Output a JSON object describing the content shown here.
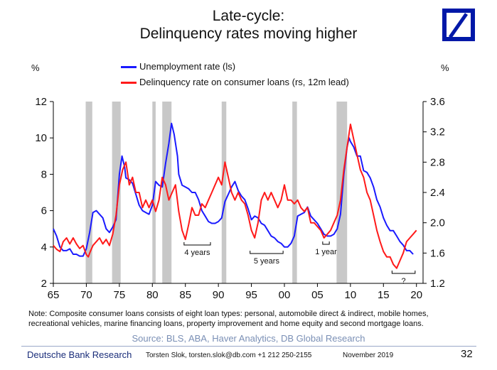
{
  "header": {
    "title_line1": "Late-cycle:",
    "title_line2": "Delinquency rates moving higher",
    "unit_left": "%",
    "unit_right": "%"
  },
  "colors": {
    "unemployment": "#1a1aff",
    "delinquency": "#ff1a1a",
    "recession": "#c8c8c8",
    "logo": "#0018a8",
    "brand_text": "#1a2d7a",
    "source_text": "#7a8fb5"
  },
  "logo": {
    "icon": "deutsche-bank-slash-square-icon"
  },
  "chart_data": {
    "type": "line",
    "xlim": [
      1965,
      2021
    ],
    "ylim_left": [
      2,
      12
    ],
    "ylim_right": [
      1.2,
      3.6
    ],
    "x_ticks": [
      "65",
      "70",
      "75",
      "80",
      "85",
      "90",
      "95",
      "00",
      "05",
      "10",
      "15",
      "20"
    ],
    "y_left_ticks": [
      "2",
      "4",
      "6",
      "8",
      "10",
      "12"
    ],
    "y_right_ticks": [
      "1.2",
      "1.6",
      "2.0",
      "2.4",
      "2.8",
      "3.2",
      "3.6"
    ],
    "legend_position": "top",
    "recessions": [
      [
        1969.9,
        1970.9
      ],
      [
        1973.9,
        1975.2
      ],
      [
        1980.0,
        1980.5
      ],
      [
        1981.5,
        1982.9
      ],
      [
        1990.5,
        1991.2
      ],
      [
        2001.2,
        2001.9
      ],
      [
        2007.9,
        2009.5
      ]
    ],
    "series": [
      {
        "name": "Unemployment rate (ls)",
        "axis": "left",
        "points": [
          [
            1965.0,
            5.0
          ],
          [
            1965.5,
            4.6
          ],
          [
            1966.0,
            4.0
          ],
          [
            1966.5,
            3.8
          ],
          [
            1967.0,
            3.8
          ],
          [
            1967.5,
            3.9
          ],
          [
            1968.0,
            3.6
          ],
          [
            1968.5,
            3.6
          ],
          [
            1969.0,
            3.5
          ],
          [
            1969.5,
            3.5
          ],
          [
            1970.0,
            3.9
          ],
          [
            1970.5,
            4.8
          ],
          [
            1971.0,
            5.9
          ],
          [
            1971.5,
            6.0
          ],
          [
            1972.0,
            5.8
          ],
          [
            1972.5,
            5.6
          ],
          [
            1973.0,
            5.0
          ],
          [
            1973.5,
            4.8
          ],
          [
            1974.0,
            5.1
          ],
          [
            1974.5,
            5.5
          ],
          [
            1975.0,
            8.0
          ],
          [
            1975.4,
            9.0
          ],
          [
            1975.8,
            8.4
          ],
          [
            1976.0,
            7.8
          ],
          [
            1976.5,
            7.7
          ],
          [
            1977.0,
            7.5
          ],
          [
            1977.5,
            6.9
          ],
          [
            1978.0,
            6.3
          ],
          [
            1978.5,
            6.0
          ],
          [
            1979.0,
            5.9
          ],
          [
            1979.5,
            5.8
          ],
          [
            1980.0,
            6.3
          ],
          [
            1980.5,
            7.6
          ],
          [
            1981.0,
            7.4
          ],
          [
            1981.5,
            7.3
          ],
          [
            1982.0,
            8.6
          ],
          [
            1982.5,
            9.7
          ],
          [
            1982.9,
            10.8
          ],
          [
            1983.3,
            10.2
          ],
          [
            1983.8,
            9.0
          ],
          [
            1984.0,
            8.0
          ],
          [
            1984.5,
            7.4
          ],
          [
            1985.0,
            7.3
          ],
          [
            1985.5,
            7.2
          ],
          [
            1986.0,
            7.0
          ],
          [
            1986.5,
            7.0
          ],
          [
            1987.0,
            6.6
          ],
          [
            1987.5,
            6.0
          ],
          [
            1988.0,
            5.7
          ],
          [
            1988.5,
            5.4
          ],
          [
            1989.0,
            5.3
          ],
          [
            1989.5,
            5.3
          ],
          [
            1990.0,
            5.4
          ],
          [
            1990.5,
            5.6
          ],
          [
            1991.0,
            6.5
          ],
          [
            1991.5,
            6.9
          ],
          [
            1992.0,
            7.3
          ],
          [
            1992.5,
            7.6
          ],
          [
            1993.0,
            7.1
          ],
          [
            1993.5,
            6.8
          ],
          [
            1994.0,
            6.6
          ],
          [
            1994.5,
            6.1
          ],
          [
            1995.0,
            5.5
          ],
          [
            1995.5,
            5.7
          ],
          [
            1996.0,
            5.6
          ],
          [
            1996.5,
            5.3
          ],
          [
            1997.0,
            5.2
          ],
          [
            1997.5,
            4.9
          ],
          [
            1998.0,
            4.6
          ],
          [
            1998.5,
            4.5
          ],
          [
            1999.0,
            4.3
          ],
          [
            1999.5,
            4.2
          ],
          [
            2000.0,
            4.0
          ],
          [
            2000.5,
            4.0
          ],
          [
            2001.0,
            4.2
          ],
          [
            2001.5,
            4.6
          ],
          [
            2002.0,
            5.7
          ],
          [
            2002.5,
            5.8
          ],
          [
            2003.0,
            5.9
          ],
          [
            2003.5,
            6.2
          ],
          [
            2004.0,
            5.7
          ],
          [
            2004.5,
            5.5
          ],
          [
            2005.0,
            5.3
          ],
          [
            2005.5,
            5.0
          ],
          [
            2006.0,
            4.7
          ],
          [
            2006.5,
            4.6
          ],
          [
            2007.0,
            4.6
          ],
          [
            2007.5,
            4.7
          ],
          [
            2008.0,
            5.0
          ],
          [
            2008.5,
            5.8
          ],
          [
            2009.0,
            8.0
          ],
          [
            2009.5,
            9.5
          ],
          [
            2009.8,
            10.0
          ],
          [
            2010.0,
            9.8
          ],
          [
            2010.5,
            9.5
          ],
          [
            2011.0,
            9.0
          ],
          [
            2011.5,
            9.0
          ],
          [
            2012.0,
            8.2
          ],
          [
            2012.5,
            8.1
          ],
          [
            2013.0,
            7.8
          ],
          [
            2013.5,
            7.3
          ],
          [
            2014.0,
            6.6
          ],
          [
            2014.5,
            6.2
          ],
          [
            2015.0,
            5.6
          ],
          [
            2015.5,
            5.2
          ],
          [
            2016.0,
            4.9
          ],
          [
            2016.5,
            4.9
          ],
          [
            2017.0,
            4.6
          ],
          [
            2017.5,
            4.3
          ],
          [
            2018.0,
            4.1
          ],
          [
            2018.5,
            3.8
          ],
          [
            2019.0,
            3.8
          ],
          [
            2019.5,
            3.6
          ]
        ]
      },
      {
        "name": "Delinquency rate on consumer loans (rs, 12m lead)",
        "axis": "right",
        "points": [
          [
            1965.0,
            1.7
          ],
          [
            1965.5,
            1.65
          ],
          [
            1966.0,
            1.62
          ],
          [
            1966.5,
            1.75
          ],
          [
            1967.0,
            1.8
          ],
          [
            1967.5,
            1.72
          ],
          [
            1968.0,
            1.8
          ],
          [
            1968.5,
            1.72
          ],
          [
            1969.0,
            1.66
          ],
          [
            1969.5,
            1.7
          ],
          [
            1970.0,
            1.58
          ],
          [
            1970.3,
            1.55
          ],
          [
            1970.6,
            1.62
          ],
          [
            1971.0,
            1.7
          ],
          [
            1971.5,
            1.75
          ],
          [
            1972.0,
            1.8
          ],
          [
            1972.5,
            1.72
          ],
          [
            1973.0,
            1.78
          ],
          [
            1973.5,
            1.7
          ],
          [
            1974.0,
            1.85
          ],
          [
            1974.5,
            2.1
          ],
          [
            1975.0,
            2.5
          ],
          [
            1975.5,
            2.7
          ],
          [
            1976.0,
            2.8
          ],
          [
            1976.5,
            2.5
          ],
          [
            1977.0,
            2.6
          ],
          [
            1977.5,
            2.4
          ],
          [
            1978.0,
            2.4
          ],
          [
            1978.5,
            2.2
          ],
          [
            1979.0,
            2.3
          ],
          [
            1979.5,
            2.2
          ],
          [
            1980.0,
            2.3
          ],
          [
            1980.5,
            2.15
          ],
          [
            1981.0,
            2.3
          ],
          [
            1981.5,
            2.6
          ],
          [
            1982.0,
            2.5
          ],
          [
            1982.5,
            2.3
          ],
          [
            1983.0,
            2.4
          ],
          [
            1983.5,
            2.5
          ],
          [
            1984.0,
            2.15
          ],
          [
            1984.5,
            1.9
          ],
          [
            1985.0,
            1.78
          ],
          [
            1985.5,
            1.98
          ],
          [
            1986.0,
            2.2
          ],
          [
            1986.5,
            2.1
          ],
          [
            1987.0,
            2.1
          ],
          [
            1987.5,
            2.25
          ],
          [
            1988.0,
            2.2
          ],
          [
            1988.5,
            2.3
          ],
          [
            1989.0,
            2.4
          ],
          [
            1989.5,
            2.5
          ],
          [
            1990.0,
            2.6
          ],
          [
            1990.5,
            2.5
          ],
          [
            1991.0,
            2.8
          ],
          [
            1991.5,
            2.6
          ],
          [
            1992.0,
            2.4
          ],
          [
            1992.5,
            2.3
          ],
          [
            1993.0,
            2.4
          ],
          [
            1993.5,
            2.3
          ],
          [
            1994.0,
            2.25
          ],
          [
            1994.5,
            2.1
          ],
          [
            1995.0,
            1.9
          ],
          [
            1995.5,
            1.8
          ],
          [
            1996.0,
            2.0
          ],
          [
            1996.5,
            2.3
          ],
          [
            1997.0,
            2.4
          ],
          [
            1997.5,
            2.3
          ],
          [
            1998.0,
            2.4
          ],
          [
            1998.5,
            2.3
          ],
          [
            1999.0,
            2.2
          ],
          [
            1999.5,
            2.3
          ],
          [
            2000.0,
            2.5
          ],
          [
            2000.5,
            2.3
          ],
          [
            2001.0,
            2.3
          ],
          [
            2001.5,
            2.25
          ],
          [
            2002.0,
            2.3
          ],
          [
            2002.5,
            2.2
          ],
          [
            2003.0,
            2.15
          ],
          [
            2003.5,
            2.2
          ],
          [
            2004.0,
            2.0
          ],
          [
            2004.5,
            2.0
          ],
          [
            2005.0,
            1.95
          ],
          [
            2005.5,
            1.9
          ],
          [
            2006.0,
            1.8
          ],
          [
            2006.5,
            1.85
          ],
          [
            2007.0,
            1.9
          ],
          [
            2007.5,
            2.0
          ],
          [
            2008.0,
            2.1
          ],
          [
            2008.5,
            2.3
          ],
          [
            2009.0,
            2.7
          ],
          [
            2009.5,
            3.0
          ],
          [
            2010.0,
            3.3
          ],
          [
            2010.5,
            3.1
          ],
          [
            2011.0,
            2.9
          ],
          [
            2011.5,
            2.7
          ],
          [
            2012.0,
            2.6
          ],
          [
            2012.5,
            2.4
          ],
          [
            2013.0,
            2.3
          ],
          [
            2013.5,
            2.1
          ],
          [
            2014.0,
            1.9
          ],
          [
            2014.5,
            1.75
          ],
          [
            2015.0,
            1.62
          ],
          [
            2015.5,
            1.55
          ],
          [
            2016.0,
            1.55
          ],
          [
            2016.5,
            1.45
          ],
          [
            2017.0,
            1.4
          ],
          [
            2017.5,
            1.5
          ],
          [
            2018.0,
            1.6
          ],
          [
            2018.5,
            1.75
          ],
          [
            2019.0,
            1.8
          ],
          [
            2019.5,
            1.85
          ],
          [
            2020.0,
            1.9
          ]
        ]
      }
    ],
    "annotations": [
      {
        "text": "4 years",
        "x_from": 1984.8,
        "x_to": 1988.8
      },
      {
        "text": "5 years",
        "x_from": 1994.8,
        "x_to": 1999.8
      },
      {
        "text": "1 year",
        "x_from": 2005.8,
        "x_to": 2006.8
      },
      {
        "text": "?",
        "x_from": 2016.3,
        "x_to": 2019.8
      }
    ]
  },
  "note": {
    "text": "Note: Composite consumer loans consists of eight loan types: personal, automobile direct & indirect, mobile homes, recreational vehicles, marine financing loans, property improvement and home equity and second mortgage loans."
  },
  "source": {
    "text": "Source: BLS, ABA, Haver Analytics, DB Global Research"
  },
  "footer": {
    "brand": "Deutsche Bank Research",
    "author": "Torsten Slok, torsten.slok@db.com  +1 212 250-2155",
    "date": "November 2019",
    "page": "32"
  }
}
